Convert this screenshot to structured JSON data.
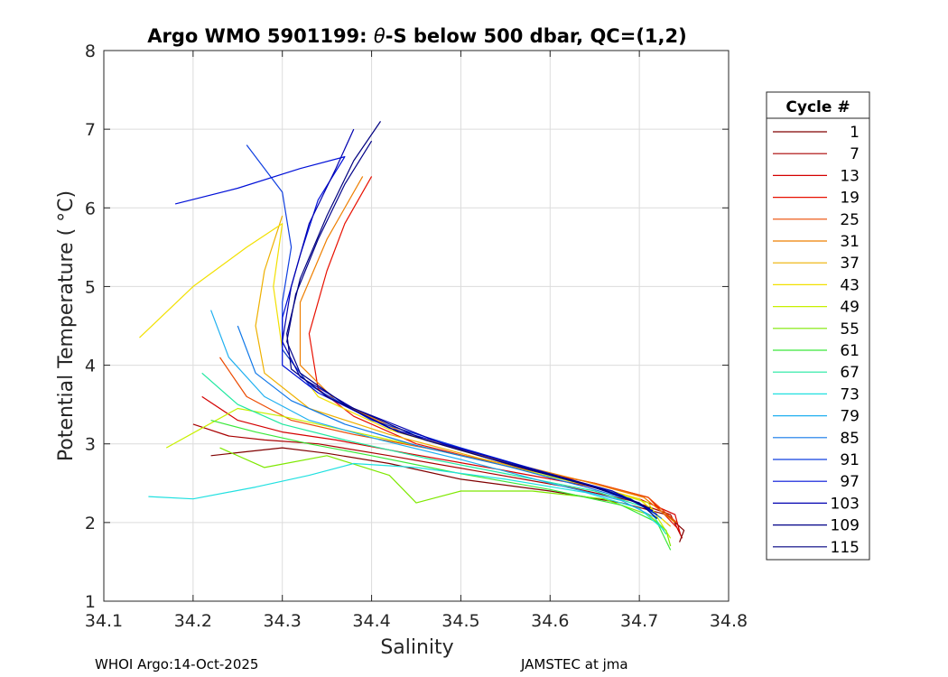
{
  "chart_data": {
    "type": "line",
    "title_parts": [
      "Argo WMO 5901199: ",
      "θ",
      "-S below 500 dbar,  QC=(1,2)"
    ],
    "xlabel": "Salinity",
    "ylabel": "Potential Temperature ( °C)",
    "xlim": [
      34.1,
      34.8
    ],
    "ylim": [
      1,
      8
    ],
    "xticks": [
      "34.1",
      "34.2",
      "34.3",
      "34.4",
      "34.5",
      "34.6",
      "34.7",
      "34.8"
    ],
    "yticks": [
      "1",
      "2",
      "3",
      "4",
      "5",
      "6",
      "7",
      "8"
    ],
    "grid": true,
    "legend": {
      "title": "Cycle #",
      "position": "right",
      "entries": [
        {
          "label": "1",
          "color": "#800000"
        },
        {
          "label": "7",
          "color": "#a80000"
        },
        {
          "label": "13",
          "color": "#d40000"
        },
        {
          "label": "19",
          "color": "#e81000"
        },
        {
          "label": "25",
          "color": "#ec4a00"
        },
        {
          "label": "31",
          "color": "#ee7f00"
        },
        {
          "label": "37",
          "color": "#eeb000"
        },
        {
          "label": "43",
          "color": "#f2e000"
        },
        {
          "label": "49",
          "color": "#c8f000"
        },
        {
          "label": "55",
          "color": "#7ee800"
        },
        {
          "label": "61",
          "color": "#3ae83a"
        },
        {
          "label": "67",
          "color": "#20e8a0"
        },
        {
          "label": "73",
          "color": "#20e0e0"
        },
        {
          "label": "79",
          "color": "#20b0f0"
        },
        {
          "label": "85",
          "color": "#1078e8"
        },
        {
          "label": "91",
          "color": "#1040e0"
        },
        {
          "label": "97",
          "color": "#0010d8"
        },
        {
          "label": "103",
          "color": "#0000b0"
        },
        {
          "label": "109",
          "color": "#000088"
        },
        {
          "label": "115",
          "color": "#000080"
        }
      ]
    },
    "series": [
      {
        "name": "1",
        "color": "#800000",
        "points": [
          [
            34.22,
            2.85
          ],
          [
            34.26,
            2.9
          ],
          [
            34.3,
            2.95
          ],
          [
            34.35,
            2.88
          ],
          [
            34.42,
            2.75
          ],
          [
            34.5,
            2.55
          ],
          [
            34.6,
            2.4
          ],
          [
            34.68,
            2.25
          ],
          [
            34.73,
            2.1
          ],
          [
            34.75,
            1.9
          ],
          [
            34.745,
            1.75
          ]
        ]
      },
      {
        "name": "7",
        "color": "#a80000",
        "points": [
          [
            34.2,
            3.25
          ],
          [
            34.24,
            3.1
          ],
          [
            34.28,
            3.05
          ],
          [
            34.34,
            3.0
          ],
          [
            34.42,
            2.85
          ],
          [
            34.52,
            2.65
          ],
          [
            34.62,
            2.45
          ],
          [
            34.69,
            2.28
          ],
          [
            34.735,
            2.1
          ],
          [
            34.748,
            1.8
          ]
        ]
      },
      {
        "name": "13",
        "color": "#d40000",
        "points": [
          [
            34.21,
            3.6
          ],
          [
            34.25,
            3.3
          ],
          [
            34.3,
            3.15
          ],
          [
            34.36,
            3.05
          ],
          [
            34.44,
            2.88
          ],
          [
            34.54,
            2.68
          ],
          [
            34.64,
            2.47
          ],
          [
            34.7,
            2.3
          ],
          [
            34.74,
            2.1
          ],
          [
            34.746,
            1.85
          ]
        ]
      },
      {
        "name": "19",
        "color": "#e81000",
        "points": [
          [
            34.4,
            6.4
          ],
          [
            34.37,
            5.8
          ],
          [
            34.35,
            5.2
          ],
          [
            34.33,
            4.4
          ],
          [
            34.34,
            3.7
          ],
          [
            34.38,
            3.35
          ],
          [
            34.45,
            3.0
          ],
          [
            34.55,
            2.72
          ],
          [
            34.65,
            2.5
          ],
          [
            34.71,
            2.32
          ],
          [
            34.745,
            1.9
          ]
        ]
      },
      {
        "name": "25",
        "color": "#ec4a00",
        "points": [
          [
            34.23,
            4.1
          ],
          [
            34.26,
            3.6
          ],
          [
            34.31,
            3.3
          ],
          [
            34.38,
            3.12
          ],
          [
            34.46,
            2.95
          ],
          [
            34.56,
            2.72
          ],
          [
            34.65,
            2.5
          ],
          [
            34.71,
            2.32
          ],
          [
            34.742,
            2.0
          ]
        ]
      },
      {
        "name": "31",
        "color": "#ee7f00",
        "points": [
          [
            34.39,
            6.4
          ],
          [
            34.35,
            5.6
          ],
          [
            34.32,
            4.8
          ],
          [
            34.32,
            4.0
          ],
          [
            34.36,
            3.55
          ],
          [
            34.44,
            3.12
          ],
          [
            34.54,
            2.8
          ],
          [
            34.64,
            2.52
          ],
          [
            34.705,
            2.32
          ],
          [
            34.74,
            2.0
          ]
        ]
      },
      {
        "name": "37",
        "color": "#eeb000",
        "points": [
          [
            34.3,
            5.9
          ],
          [
            34.28,
            5.2
          ],
          [
            34.27,
            4.5
          ],
          [
            34.28,
            3.9
          ],
          [
            34.33,
            3.45
          ],
          [
            34.42,
            3.12
          ],
          [
            34.52,
            2.82
          ],
          [
            34.63,
            2.52
          ],
          [
            34.7,
            2.3
          ],
          [
            34.735,
            1.95
          ]
        ]
      },
      {
        "name": "43",
        "color": "#f2e000",
        "points": [
          [
            34.14,
            4.35
          ],
          [
            34.2,
            5.0
          ],
          [
            34.26,
            5.5
          ],
          [
            34.3,
            5.8
          ],
          [
            34.29,
            5.0
          ],
          [
            34.3,
            4.2
          ],
          [
            34.34,
            3.6
          ],
          [
            34.42,
            3.18
          ],
          [
            34.52,
            2.85
          ],
          [
            34.62,
            2.55
          ],
          [
            34.7,
            2.3
          ],
          [
            34.73,
            2.0
          ]
        ]
      },
      {
        "name": "49",
        "color": "#c8f000",
        "points": [
          [
            34.17,
            2.95
          ],
          [
            34.21,
            3.2
          ],
          [
            34.25,
            3.45
          ],
          [
            34.3,
            3.35
          ],
          [
            34.36,
            3.2
          ],
          [
            34.45,
            2.98
          ],
          [
            34.55,
            2.72
          ],
          [
            34.65,
            2.45
          ],
          [
            34.71,
            2.25
          ],
          [
            34.735,
            1.8
          ]
        ]
      },
      {
        "name": "55",
        "color": "#7ee800",
        "points": [
          [
            34.23,
            2.95
          ],
          [
            34.28,
            2.7
          ],
          [
            34.35,
            2.85
          ],
          [
            34.42,
            2.6
          ],
          [
            34.45,
            2.25
          ],
          [
            34.5,
            2.4
          ],
          [
            34.58,
            2.4
          ],
          [
            34.66,
            2.3
          ],
          [
            34.71,
            2.1
          ],
          [
            34.73,
            1.9
          ],
          [
            34.735,
            1.7
          ]
        ]
      },
      {
        "name": "61",
        "color": "#3ae83a",
        "points": [
          [
            34.22,
            3.3
          ],
          [
            34.27,
            3.15
          ],
          [
            34.33,
            3.0
          ],
          [
            34.4,
            2.85
          ],
          [
            34.5,
            2.62
          ],
          [
            34.6,
            2.42
          ],
          [
            34.68,
            2.22
          ],
          [
            34.72,
            2.0
          ],
          [
            34.735,
            1.65
          ]
        ]
      },
      {
        "name": "67",
        "color": "#20e8a0",
        "points": [
          [
            34.21,
            3.9
          ],
          [
            34.25,
            3.5
          ],
          [
            34.3,
            3.25
          ],
          [
            34.37,
            3.05
          ],
          [
            34.46,
            2.82
          ],
          [
            34.56,
            2.6
          ],
          [
            34.65,
            2.4
          ],
          [
            34.71,
            2.18
          ],
          [
            34.73,
            1.85
          ]
        ]
      },
      {
        "name": "73",
        "color": "#20e0e0",
        "points": [
          [
            34.15,
            2.33
          ],
          [
            34.2,
            2.3
          ],
          [
            34.27,
            2.45
          ],
          [
            34.33,
            2.6
          ],
          [
            34.38,
            2.75
          ],
          [
            34.45,
            2.7
          ],
          [
            34.55,
            2.55
          ],
          [
            34.64,
            2.38
          ],
          [
            34.7,
            2.18
          ],
          [
            34.728,
            1.9
          ]
        ]
      },
      {
        "name": "79",
        "color": "#20b0f0",
        "points": [
          [
            34.22,
            4.7
          ],
          [
            34.24,
            4.1
          ],
          [
            34.28,
            3.6
          ],
          [
            34.33,
            3.3
          ],
          [
            34.41,
            3.05
          ],
          [
            34.5,
            2.8
          ],
          [
            34.6,
            2.5
          ],
          [
            34.68,
            2.28
          ],
          [
            34.72,
            2.05
          ]
        ]
      },
      {
        "name": "85",
        "color": "#1078e8",
        "points": [
          [
            34.25,
            4.5
          ],
          [
            34.27,
            3.9
          ],
          [
            34.31,
            3.55
          ],
          [
            34.37,
            3.25
          ],
          [
            34.45,
            2.98
          ],
          [
            34.55,
            2.72
          ],
          [
            34.64,
            2.45
          ],
          [
            34.7,
            2.25
          ],
          [
            34.725,
            2.05
          ]
        ]
      },
      {
        "name": "91",
        "color": "#1040e0",
        "points": [
          [
            34.26,
            6.8
          ],
          [
            34.3,
            6.2
          ],
          [
            34.31,
            5.5
          ],
          [
            34.3,
            4.8
          ],
          [
            34.3,
            4.2
          ],
          [
            34.33,
            3.75
          ],
          [
            34.4,
            3.3
          ],
          [
            34.5,
            2.95
          ],
          [
            34.6,
            2.62
          ],
          [
            34.68,
            2.35
          ],
          [
            34.72,
            2.1
          ]
        ]
      },
      {
        "name": "97",
        "color": "#0010d8",
        "points": [
          [
            34.18,
            6.05
          ],
          [
            34.25,
            6.25
          ],
          [
            34.32,
            6.5
          ],
          [
            34.37,
            6.65
          ],
          [
            34.34,
            6.1
          ],
          [
            34.32,
            5.4
          ],
          [
            34.3,
            4.6
          ],
          [
            34.3,
            4.0
          ],
          [
            34.34,
            3.65
          ],
          [
            34.42,
            3.2
          ],
          [
            34.52,
            2.88
          ],
          [
            34.62,
            2.55
          ],
          [
            34.69,
            2.3
          ],
          [
            34.72,
            2.1
          ]
        ]
      },
      {
        "name": "103",
        "color": "#0000b0",
        "points": [
          [
            34.38,
            7.0
          ],
          [
            34.36,
            6.5
          ],
          [
            34.33,
            5.8
          ],
          [
            34.31,
            5.0
          ],
          [
            34.3,
            4.3
          ],
          [
            34.32,
            3.85
          ],
          [
            34.38,
            3.45
          ],
          [
            34.48,
            3.0
          ],
          [
            34.58,
            2.68
          ],
          [
            34.67,
            2.4
          ],
          [
            34.715,
            2.15
          ]
        ]
      },
      {
        "name": "109",
        "color": "#000088",
        "points": [
          [
            34.4,
            6.85
          ],
          [
            34.37,
            6.3
          ],
          [
            34.34,
            5.6
          ],
          [
            34.315,
            4.9
          ],
          [
            34.305,
            4.3
          ],
          [
            34.32,
            3.9
          ],
          [
            34.37,
            3.5
          ],
          [
            34.46,
            3.05
          ],
          [
            34.56,
            2.72
          ],
          [
            34.66,
            2.42
          ],
          [
            34.712,
            2.18
          ]
        ]
      },
      {
        "name": "115",
        "color": "#000080",
        "points": [
          [
            34.41,
            7.1
          ],
          [
            34.38,
            6.6
          ],
          [
            34.35,
            5.9
          ],
          [
            34.32,
            5.1
          ],
          [
            34.305,
            4.4
          ],
          [
            34.31,
            3.95
          ],
          [
            34.35,
            3.6
          ],
          [
            34.43,
            3.15
          ],
          [
            34.53,
            2.82
          ],
          [
            34.63,
            2.52
          ],
          [
            34.7,
            2.25
          ],
          [
            34.72,
            2.05
          ]
        ]
      }
    ]
  },
  "footer": {
    "left": "WHOI Argo:14-Oct-2025",
    "right": "JAMSTEC at jma"
  }
}
